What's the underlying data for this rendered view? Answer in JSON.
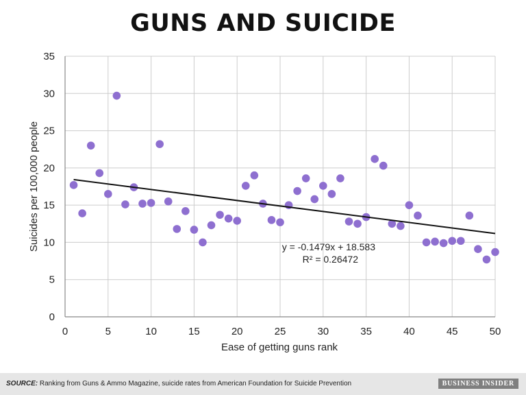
{
  "title": "GUNS AND SUICIDE",
  "footer": {
    "source_label": "SOURCE:",
    "source_text": " Ranking from Guns & Ammo Magazine, suicide rates from American Foundation for Suicide Prevention",
    "brand": "BUSINESS INSIDER"
  },
  "colors": {
    "points": "#8e6fd0",
    "trendline": "#111111",
    "grid": "#cccccc"
  },
  "chart_data": {
    "type": "scatter",
    "xlabel": "Ease of getting guns rank",
    "ylabel": "Suicides per 100,000 people",
    "xlim": [
      0,
      50
    ],
    "ylim": [
      0,
      35
    ],
    "xticks": [
      0,
      5,
      10,
      15,
      20,
      25,
      30,
      35,
      40,
      45,
      50
    ],
    "yticks": [
      0,
      5,
      10,
      15,
      20,
      25,
      30,
      35
    ],
    "grid": true,
    "legend": "none",
    "series": [
      {
        "x": [
          1,
          2,
          3,
          4,
          5,
          6,
          7,
          8,
          9,
          10,
          11,
          12,
          13,
          14,
          15,
          16,
          17,
          18,
          19,
          20,
          21,
          22,
          23,
          24,
          25,
          26,
          27,
          28,
          29,
          30,
          31,
          32,
          33,
          34,
          35,
          36,
          37,
          38,
          39,
          40,
          41,
          42,
          43,
          44,
          45,
          46,
          47,
          48,
          49,
          50
        ],
        "values": [
          17.7,
          13.9,
          23.0,
          19.3,
          16.5,
          29.7,
          15.1,
          17.4,
          15.2,
          15.3,
          23.2,
          15.5,
          11.8,
          14.2,
          11.7,
          10.0,
          12.3,
          13.7,
          13.2,
          12.9,
          17.6,
          19.0,
          15.2,
          13.0,
          12.7,
          15.0,
          16.9,
          18.6,
          15.8,
          17.6,
          16.5,
          18.6,
          12.8,
          12.5,
          13.4,
          21.2,
          20.3,
          12.5,
          12.2,
          15.0,
          13.6,
          10.0,
          10.1,
          9.9,
          10.2,
          10.2,
          13.6,
          9.1,
          7.7,
          8.7
        ]
      }
    ],
    "trendline": {
      "slope": -0.1479,
      "intercept": 18.583,
      "equation": "y = -0.1479x + 18.583",
      "r_squared": "R² = 0.26472"
    }
  }
}
